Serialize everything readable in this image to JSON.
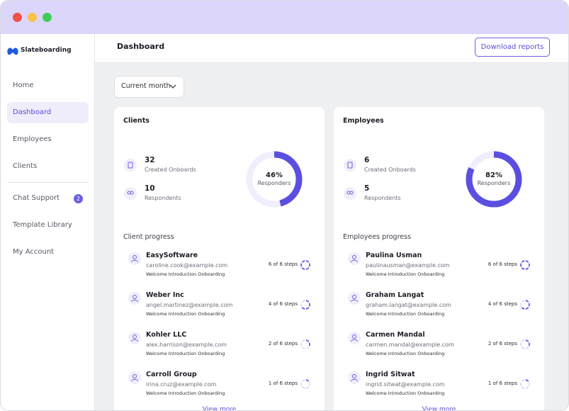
{
  "window": {
    "brand": "Slateboarding"
  },
  "sidebar": {
    "nav": [
      {
        "label": "Home"
      },
      {
        "label": "Dashboard",
        "active": true
      },
      {
        "label": "Employees"
      },
      {
        "label": "Clients"
      }
    ],
    "nav2": [
      {
        "label": "Chat Support",
        "badge": "2"
      },
      {
        "label": "Template Library"
      },
      {
        "label": "My Account"
      }
    ]
  },
  "header": {
    "title": "Dashboard",
    "button": "Download reports"
  },
  "filter": "Current month",
  "cards": [
    {
      "title": "Clients",
      "stats": [
        {
          "value": "32",
          "label": "Created Onboards"
        },
        {
          "value": "10",
          "label": "Respondents"
        }
      ],
      "donut": {
        "value": 46,
        "label": "46%",
        "caption": "Responders"
      },
      "progress_title": "Client progress",
      "rows": [
        {
          "name": "EasySoftware",
          "email": "caroline.cook@example.com",
          "subtitle": "Welcome Introduction Onboarding",
          "steps": {
            "done": 6,
            "total": 6,
            "label": "6 of 6 steps"
          }
        },
        {
          "name": "Weber Inc",
          "email": "angel.martinez@example.com",
          "subtitle": "Welcome Introduction Onboarding",
          "steps": {
            "done": 4,
            "total": 6,
            "label": "4 of 6 steps"
          }
        },
        {
          "name": "Kohler LLC",
          "email": "alex.harrison@example.com",
          "subtitle": "Welcome Introduction Onboarding",
          "steps": {
            "done": 2,
            "total": 6,
            "label": "2 of 6 steps"
          }
        },
        {
          "name": "Carroll Group",
          "email": "irina.cruz@example.com",
          "subtitle": "Welcome Introduction Onboarding",
          "steps": {
            "done": 1,
            "total": 6,
            "label": "1 of 6 steps"
          }
        }
      ],
      "more": "View more"
    },
    {
      "title": "Employees",
      "stats": [
        {
          "value": "6",
          "label": "Created Onboards"
        },
        {
          "value": "5",
          "label": "Respondents"
        }
      ],
      "donut": {
        "value": 82,
        "label": "82%",
        "caption": "Responders"
      },
      "progress_title": "Employees progress",
      "rows": [
        {
          "name": "Paulina Usman",
          "email": "paulinausman@example.com",
          "subtitle": "Welcome Introduction Onboarding",
          "steps": {
            "done": 6,
            "total": 6,
            "label": "6 of 6 steps"
          }
        },
        {
          "name": "Graham Langat",
          "email": "graham.langat@example.com",
          "subtitle": "Welcome Introduction Onboarding",
          "steps": {
            "done": 4,
            "total": 6,
            "label": "4 of 6 steps"
          }
        },
        {
          "name": "Carmen Mandal",
          "email": "carmen.mandal@example.com",
          "subtitle": "Welcome Introduction Onboarding",
          "steps": {
            "done": 2,
            "total": 6,
            "label": "2 of 6 steps"
          }
        },
        {
          "name": "Ingrid Sitwat",
          "email": "ingrid.sitwat@example.com",
          "subtitle": "Welcome Introduction Onboarding",
          "steps": {
            "done": 1,
            "total": 6,
            "label": "1 of 6 steps"
          }
        }
      ],
      "more": "View more"
    }
  ]
}
